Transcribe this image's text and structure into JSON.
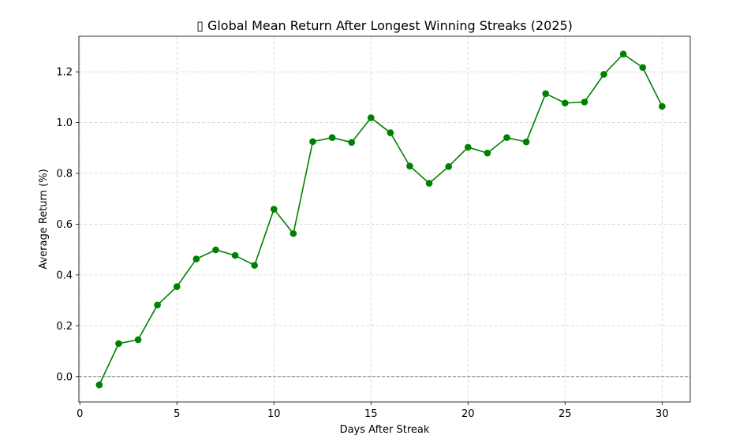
{
  "chart_data": {
    "type": "line",
    "title": "▯ Global Mean Return After Longest Winning Streaks (2025)",
    "xlabel": "Days After Streak",
    "ylabel": "Average Return (%)",
    "xlim": [
      -0.05,
      31.45
    ],
    "ylim": [
      -0.1,
      1.34
    ],
    "x_ticks": [
      0,
      5,
      10,
      15,
      20,
      25,
      30
    ],
    "y_ticks": [
      0.0,
      0.2,
      0.4,
      0.6,
      0.8,
      1.0,
      1.2
    ],
    "x_tick_labels": [
      "0",
      "5",
      "10",
      "15",
      "20",
      "25",
      "30"
    ],
    "y_tick_labels": [
      "0.0",
      "0.2",
      "0.4",
      "0.6",
      "0.8",
      "1.0",
      "1.2"
    ],
    "grid": true,
    "grid_style": "dashed",
    "reference_line": {
      "y": 0.0,
      "style": "dashed",
      "color": "#808080"
    },
    "series": [
      {
        "name": "Global Mean Return",
        "color": "#008000",
        "marker": "circle",
        "x": [
          1,
          2,
          3,
          4,
          5,
          6,
          7,
          8,
          9,
          10,
          11,
          12,
          13,
          14,
          15,
          16,
          17,
          18,
          19,
          20,
          21,
          22,
          23,
          24,
          25,
          26,
          27,
          28,
          29,
          30
        ],
        "values": [
          -0.033,
          0.13,
          0.145,
          0.282,
          0.354,
          0.463,
          0.499,
          0.477,
          0.438,
          0.659,
          0.563,
          0.925,
          0.941,
          0.922,
          1.019,
          0.96,
          0.829,
          0.761,
          0.827,
          0.903,
          0.88,
          0.941,
          0.924,
          1.114,
          1.077,
          1.081,
          1.19,
          1.27,
          1.217,
          1.064
        ]
      }
    ]
  }
}
